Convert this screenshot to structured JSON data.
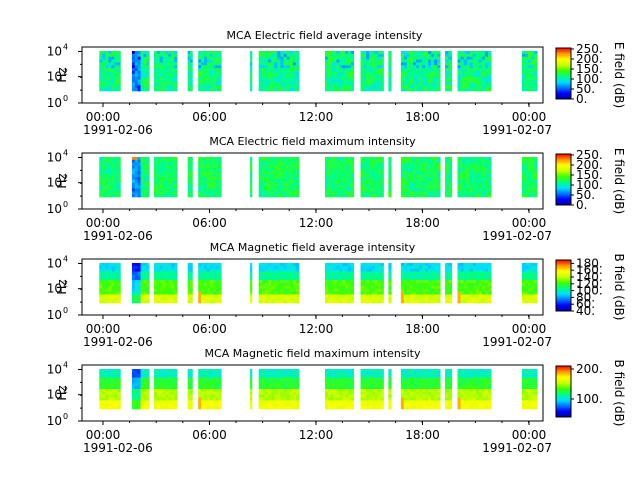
{
  "chart_data": [
    {
      "type": "heatmap",
      "title": "MCA  Electric field average intensity",
      "ylabel": "Hz",
      "y_ticks": [
        {
          "base": "10",
          "exp": "0"
        },
        {
          "base": "10",
          "exp": "2"
        },
        {
          "base": "10",
          "exp": "4"
        }
      ],
      "x_ticks": [
        "00:00",
        "06:00",
        "12:00",
        "18:00",
        "00:00"
      ],
      "x_start_date": "1991-02-06",
      "x_end_date": "1991-02-07",
      "colorbar": {
        "label": "E field (dB)",
        "ticks": [
          "0.",
          "50.",
          "100.",
          "150.",
          "200.",
          "250."
        ],
        "range": [
          0,
          255
        ]
      },
      "style": "electric-average"
    },
    {
      "type": "heatmap",
      "title": "MCA  Electric field maximum intensity",
      "ylabel": "Hz",
      "y_ticks": [
        {
          "base": "10",
          "exp": "0"
        },
        {
          "base": "10",
          "exp": "2"
        },
        {
          "base": "10",
          "exp": "4"
        }
      ],
      "x_ticks": [
        "00:00",
        "06:00",
        "12:00",
        "18:00",
        "00:00"
      ],
      "x_start_date": "1991-02-06",
      "x_end_date": "1991-02-07",
      "colorbar": {
        "label": "E field (dB)",
        "ticks": [
          "0.",
          "50.",
          "100.",
          "150.",
          "200.",
          "250."
        ],
        "range": [
          0,
          255
        ]
      },
      "style": "electric-maximum"
    },
    {
      "type": "heatmap",
      "title": "MCA  Magnetic field average intensity",
      "ylabel": "Hz",
      "y_ticks": [
        {
          "base": "10",
          "exp": "0"
        },
        {
          "base": "10",
          "exp": "2"
        },
        {
          "base": "10",
          "exp": "4"
        }
      ],
      "x_ticks": [
        "00:00",
        "06:00",
        "12:00",
        "18:00",
        "00:00"
      ],
      "x_start_date": "1991-02-06",
      "x_end_date": "1991-02-07",
      "colorbar": {
        "label": "B field (dB)",
        "ticks": [
          "40.",
          "60.",
          "80.",
          "100.",
          "120.",
          "140.",
          "160.",
          "180."
        ],
        "range": [
          40,
          190
        ]
      },
      "style": "magnetic-average"
    },
    {
      "type": "heatmap",
      "title": "MCA  Magnetic field maximum intensity",
      "ylabel": "Hz",
      "y_ticks": [
        {
          "base": "10",
          "exp": "0"
        },
        {
          "base": "10",
          "exp": "2"
        },
        {
          "base": "10",
          "exp": "4"
        }
      ],
      "x_ticks": [
        "00:00",
        "06:00",
        "12:00",
        "18:00",
        "00:00"
      ],
      "x_start_date": "1991-02-06",
      "x_end_date": "1991-02-07",
      "colorbar": {
        "label": "B field (dB)",
        "ticks": [
          "100.",
          "200."
        ],
        "range": [
          40,
          210
        ]
      },
      "style": "magnetic-maximum"
    }
  ],
  "data_gaps_note_free": true,
  "segments_hours": [
    [
      0.9,
      2.0
    ],
    [
      2.6,
      3.5
    ],
    [
      3.75,
      4.95
    ],
    [
      5.5,
      5.75
    ],
    [
      6.05,
      7.25
    ],
    [
      8.75,
      8.85
    ],
    [
      9.2,
      11.3
    ],
    [
      12.65,
      14.15
    ],
    [
      14.5,
      15.7
    ],
    [
      15.95,
      16.1
    ],
    [
      16.6,
      18.65
    ],
    [
      18.9,
      19.25
    ],
    [
      19.55,
      21.3
    ],
    [
      22.9,
      23.7
    ]
  ],
  "colormap": [
    "#0000a0",
    "#0000ff",
    "#0078ff",
    "#00e0ff",
    "#00ff80",
    "#40ff00",
    "#c8ff00",
    "#ffff00",
    "#ff9600",
    "#ff0000"
  ]
}
